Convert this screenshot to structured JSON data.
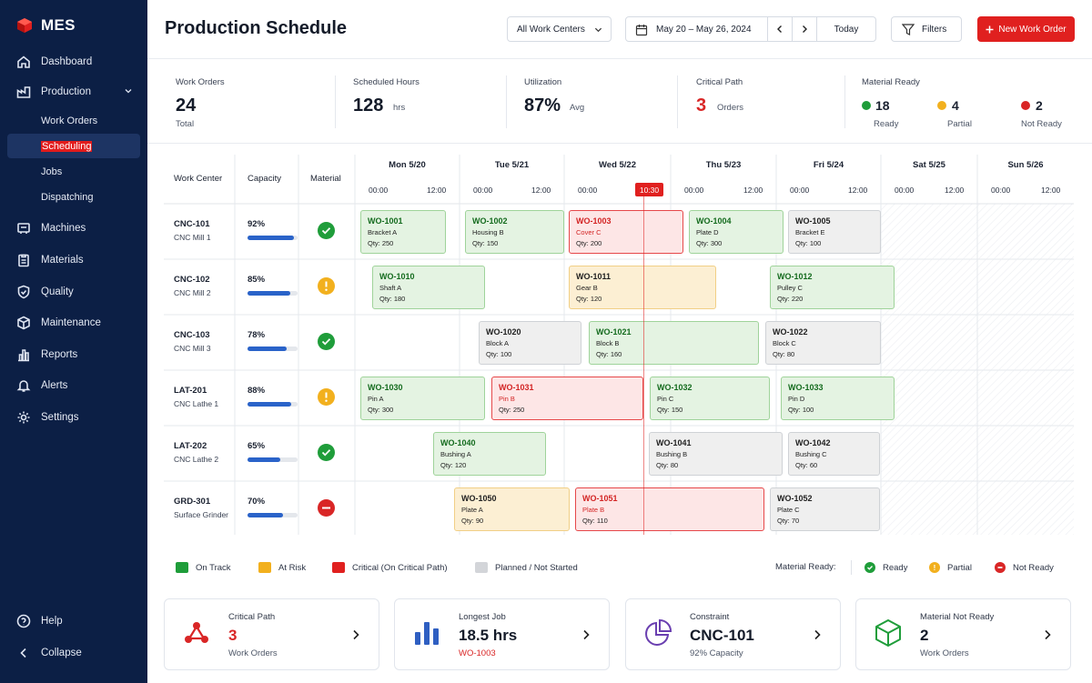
{
  "app": {
    "name": "MES"
  },
  "sidebar": {
    "items": [
      {
        "label": "Dashboard",
        "icon": "home-icon"
      },
      {
        "label": "Production",
        "icon": "factory-icon"
      },
      {
        "label": "Machines",
        "icon": "machine-icon"
      },
      {
        "label": "Materials",
        "icon": "clipboard-icon"
      },
      {
        "label": "Quality",
        "icon": "shield-icon"
      },
      {
        "label": "Maintenance",
        "icon": "box-icon"
      },
      {
        "label": "Reports",
        "icon": "bar-chart-icon"
      },
      {
        "label": "Alerts",
        "icon": "bell-icon"
      },
      {
        "label": "Settings",
        "icon": "gear-icon"
      }
    ],
    "production_sub": [
      "Work Orders",
      "Scheduling",
      "Jobs",
      "Dispatching"
    ],
    "active_sub": "Scheduling",
    "help_label": "Help",
    "collapse_label": "Collapse"
  },
  "header": {
    "title": "Production Schedule",
    "work_center_select": "All Work Centers",
    "date_range": "May 20 – May 26, 2024",
    "today_label": "Today",
    "filters_label": "Filters",
    "new_wo_label": "New Work Order",
    "accent_color": "#e0201f"
  },
  "kpis": {
    "work_orders": {
      "label": "Work Orders",
      "value": "24",
      "sub": "Total"
    },
    "scheduled_hours": {
      "label": "Scheduled Hours",
      "value": "128",
      "unit": "hrs"
    },
    "utilization": {
      "label": "Utilization",
      "value": "87%",
      "unit": "Avg"
    },
    "critical_path": {
      "label": "Critical Path",
      "value": "3",
      "unit": "Orders"
    },
    "material_ready": {
      "label": "Material Ready",
      "items": [
        {
          "value": "18",
          "label": "Ready",
          "color": "#1f9d3a"
        },
        {
          "value": "4",
          "label": "Partial",
          "color": "#f2b01e"
        },
        {
          "value": "2",
          "label": "Not Ready",
          "color": "#d92626"
        }
      ]
    }
  },
  "schedule": {
    "headers": {
      "work_center": "Work Center",
      "capacity": "Capacity",
      "material": "Material"
    },
    "days": [
      "Mon 5/20",
      "Tue 5/21",
      "Wed 5/22",
      "Thu 5/23",
      "Fri 5/24",
      "Sat 5/25",
      "Sun 5/26"
    ],
    "times": [
      "00:00",
      "12:00"
    ],
    "now_label": "10:30",
    "rows": [
      {
        "code": "CNC-101",
        "name": "CNC Mill 1",
        "capacity": "92%",
        "cap_pct": 92,
        "material": "ready"
      },
      {
        "code": "CNC-102",
        "name": "CNC Mill 2",
        "capacity": "85%",
        "cap_pct": 85,
        "material": "partial"
      },
      {
        "code": "CNC-103",
        "name": "CNC Mill 3",
        "capacity": "78%",
        "cap_pct": 78,
        "material": "ready"
      },
      {
        "code": "LAT-201",
        "name": "CNC Lathe 1",
        "capacity": "88%",
        "cap_pct": 88,
        "material": "partial"
      },
      {
        "code": "LAT-202",
        "name": "CNC Lathe 2",
        "capacity": "65%",
        "cap_pct": 65,
        "material": "ready"
      },
      {
        "code": "GRD-301",
        "name": "Surface Grinder",
        "capacity": "70%",
        "cap_pct": 70,
        "material": "notready"
      }
    ],
    "work_orders": [
      {
        "row": 0,
        "id": "WO-1001",
        "part": "Bracket A",
        "qty": "Qty: 250",
        "status": "green"
      },
      {
        "row": 0,
        "id": "WO-1002",
        "part": "Housing B",
        "qty": "Qty: 150",
        "status": "green"
      },
      {
        "row": 0,
        "id": "WO-1003",
        "part": "Cover C",
        "qty": "Qty: 200",
        "status": "red"
      },
      {
        "row": 0,
        "id": "WO-1004",
        "part": "Plate D",
        "qty": "Qty: 300",
        "status": "green"
      },
      {
        "row": 0,
        "id": "WO-1005",
        "part": "Bracket E",
        "qty": "Qty: 100",
        "status": "grey"
      },
      {
        "row": 1,
        "id": "WO-1010",
        "part": "Shaft A",
        "qty": "Qty: 180",
        "status": "green"
      },
      {
        "row": 1,
        "id": "WO-1011",
        "part": "Gear B",
        "qty": "Qty: 120",
        "status": "yellow"
      },
      {
        "row": 1,
        "id": "WO-1012",
        "part": "Pulley C",
        "qty": "Qty: 220",
        "status": "green"
      },
      {
        "row": 2,
        "id": "WO-1020",
        "part": "Block A",
        "qty": "Qty: 100",
        "status": "grey"
      },
      {
        "row": 2,
        "id": "WO-1021",
        "part": "Block B",
        "qty": "Qty: 160",
        "status": "green"
      },
      {
        "row": 2,
        "id": "WO-1022",
        "part": "Block C",
        "qty": "Qty: 80",
        "status": "grey"
      },
      {
        "row": 3,
        "id": "WO-1030",
        "part": "Pin A",
        "qty": "Qty: 300",
        "status": "green"
      },
      {
        "row": 3,
        "id": "WO-1031",
        "part": "Pin B",
        "qty": "Qty: 250",
        "status": "red"
      },
      {
        "row": 3,
        "id": "WO-1032",
        "part": "Pin C",
        "qty": "Qty: 150",
        "status": "green"
      },
      {
        "row": 3,
        "id": "WO-1033",
        "part": "Pin D",
        "qty": "Qty: 100",
        "status": "green"
      },
      {
        "row": 4,
        "id": "WO-1040",
        "part": "Bushing A",
        "qty": "Qty: 120",
        "status": "green"
      },
      {
        "row": 4,
        "id": "WO-1041",
        "part": "Bushing B",
        "qty": "Qty: 80",
        "status": "grey"
      },
      {
        "row": 4,
        "id": "WO-1042",
        "part": "Bushing C",
        "qty": "Qty: 60",
        "status": "grey"
      },
      {
        "row": 5,
        "id": "WO-1050",
        "part": "Plate A",
        "qty": "Qty: 90",
        "status": "yellow"
      },
      {
        "row": 5,
        "id": "WO-1051",
        "part": "Plate B",
        "qty": "Qty: 110",
        "status": "red"
      },
      {
        "row": 5,
        "id": "WO-1052",
        "part": "Plate C",
        "qty": "Qty: 70",
        "status": "grey"
      }
    ]
  },
  "legend": {
    "status": [
      {
        "label": "On Track",
        "color": "#1f9d3a"
      },
      {
        "label": "At Risk",
        "color": "#f2b01e"
      },
      {
        "label": "Critical (On Critical Path)",
        "color": "#e0201f"
      },
      {
        "label": "Planned / Not Started",
        "color": "#d3d5d9"
      }
    ],
    "material_title": "Material Ready:",
    "material": [
      {
        "label": "Ready",
        "color": "#1f9d3a"
      },
      {
        "label": "Partial",
        "color": "#f2b01e"
      },
      {
        "label": "Not Ready",
        "color": "#d92626"
      }
    ]
  },
  "cards": [
    {
      "label": "Critical Path",
      "value": "3",
      "sub": "Work Orders",
      "icon": "network-icon"
    },
    {
      "label": "Longest Job",
      "value": "18.5 hrs",
      "sub": "WO-1003",
      "icon": "bar-chart-icon"
    },
    {
      "label": "Constraint",
      "value": "CNC-101",
      "sub": "92% Capacity",
      "icon": "pie-chart-icon"
    },
    {
      "label": "Material Not Ready",
      "value": "2",
      "sub": "Work Orders",
      "icon": "cube-icon"
    }
  ]
}
